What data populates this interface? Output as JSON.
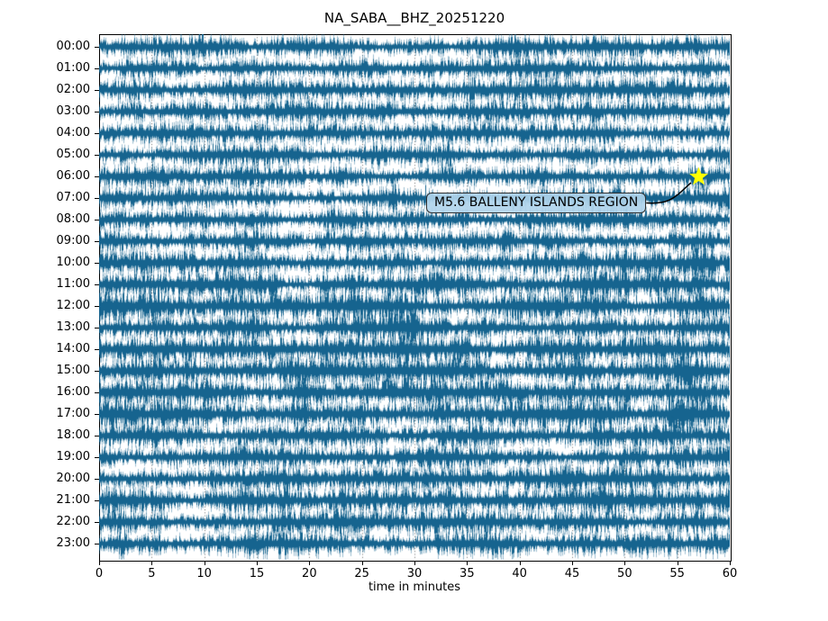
{
  "chart_data": {
    "type": "line",
    "subtype": "seismogram-dayplot",
    "title": "NA_SABA__BHZ_20251220",
    "xlabel": "time in minutes",
    "xlim": [
      0,
      60
    ],
    "x_ticks": [
      0,
      5,
      10,
      15,
      20,
      25,
      30,
      35,
      40,
      45,
      50,
      55,
      60
    ],
    "grid": {
      "vertical_dotted_lines_every_minutes": 5,
      "style": "dotted",
      "color": "#000000"
    },
    "trace_color": "#16648f",
    "rows": [
      {
        "label": "00:00",
        "amp": 8.5,
        "bursts": [
          [
            9.7,
            2.4,
            0.15
          ],
          [
            2,
            1.25,
            0.5
          ]
        ]
      },
      {
        "label": "01:00",
        "amp": 8.5,
        "bursts": [
          [
            57.3,
            1.5,
            0.8
          ],
          [
            40,
            1.2,
            0.6
          ]
        ]
      },
      {
        "label": "02:00",
        "amp": 9.5,
        "bursts": [
          [
            8,
            1.35,
            0.4
          ],
          [
            35.5,
            1.45,
            0.3
          ]
        ]
      },
      {
        "label": "03:00",
        "amp": 8.5,
        "bursts": [
          [
            16,
            1.7,
            0.2
          ],
          [
            27,
            1.35,
            0.3
          ]
        ]
      },
      {
        "label": "04:00",
        "amp": 8.5,
        "bursts": [
          [
            20,
            1.25,
            0.5
          ]
        ]
      },
      {
        "label": "05:00",
        "amp": 9.0,
        "bursts": [
          [
            33,
            1.25,
            0.4
          ]
        ]
      },
      {
        "label": "06:00",
        "amp": 9.0,
        "bursts": [
          [
            57,
            1.45,
            0.4
          ],
          [
            30,
            1.25,
            0.3
          ]
        ]
      },
      {
        "label": "07:00",
        "amp": 9.0,
        "bursts": [
          [
            28,
            1.7,
            0.2
          ],
          [
            44,
            1.35,
            0.3
          ]
        ]
      },
      {
        "label": "08:00",
        "amp": 9.0,
        "bursts": [
          [
            10,
            1.3,
            0.4
          ]
        ]
      },
      {
        "label": "09:00",
        "amp": 8.5,
        "bursts": [
          [
            13,
            1.6,
            0.15
          ],
          [
            38.5,
            1.55,
            0.2
          ]
        ]
      },
      {
        "label": "10:00",
        "amp": 10.5,
        "bursts": [
          [
            57.3,
            1.9,
            0.9
          ],
          [
            33,
            1.25,
            0.5
          ]
        ]
      },
      {
        "label": "11:00",
        "amp": 10.5,
        "bursts": [
          [
            23.5,
            1.5,
            0.4
          ],
          [
            27.5,
            1.6,
            0.3
          ],
          [
            57,
            1.35,
            0.4
          ]
        ]
      },
      {
        "label": "12:00",
        "amp": 11.0,
        "bursts": [
          [
            24,
            1.45,
            0.4
          ],
          [
            40,
            1.35,
            0.4
          ]
        ]
      },
      {
        "label": "13:00",
        "amp": 10.5,
        "bursts": [
          [
            29.5,
            1.5,
            0.4
          ],
          [
            12,
            1.25,
            0.4
          ]
        ]
      },
      {
        "label": "14:00",
        "amp": 12.0,
        "bursts": [
          [
            8.5,
            1.45,
            0.4
          ],
          [
            28.5,
            1.6,
            0.5
          ],
          [
            45.5,
            1.35,
            0.4
          ]
        ]
      },
      {
        "label": "15:00",
        "amp": 12.5,
        "bursts": [
          [
            45.5,
            1.6,
            0.6
          ],
          [
            56,
            1.7,
            0.8
          ]
        ]
      },
      {
        "label": "16:00",
        "amp": 12.0,
        "bursts": [
          [
            19.5,
            1.6,
            0.4
          ],
          [
            12,
            1.35,
            0.3
          ],
          [
            57,
            1.45,
            0.4
          ]
        ]
      },
      {
        "label": "17:00",
        "amp": 12.5,
        "bursts": [
          [
            19.5,
            1.55,
            0.5
          ],
          [
            45,
            1.45,
            0.4
          ],
          [
            55.5,
            1.6,
            0.6
          ]
        ]
      },
      {
        "label": "18:00",
        "amp": 10.5,
        "bursts": [
          [
            33,
            1.25,
            0.4
          ]
        ]
      },
      {
        "label": "19:00",
        "amp": 9.5,
        "bursts": [
          [
            28.5,
            1.45,
            0.2
          ]
        ]
      },
      {
        "label": "20:00",
        "amp": 10.5,
        "bursts": [
          [
            23.5,
            1.45,
            0.3
          ],
          [
            44,
            1.25,
            0.4
          ]
        ]
      },
      {
        "label": "21:00",
        "amp": 11.0,
        "bursts": [
          [
            17.5,
            1.5,
            0.4
          ],
          [
            29,
            1.5,
            0.4
          ],
          [
            33,
            1.45,
            0.3
          ]
        ]
      },
      {
        "label": "22:00",
        "amp": 9.5,
        "bursts": [
          [
            17.5,
            1.35,
            0.3
          ],
          [
            23,
            1.35,
            0.3
          ]
        ]
      },
      {
        "label": "23:00",
        "amp": 9.5,
        "bursts": [
          [
            14.2,
            2.1,
            0.12
          ],
          [
            2,
            1.35,
            0.3
          ],
          [
            37.5,
            1.3,
            0.2
          ]
        ]
      }
    ],
    "annotation": {
      "text": "M5.6 BALLENY ISLANDS REGION",
      "row": "06:00",
      "minute": 57,
      "marker": "star",
      "marker_color": "#ffff00",
      "box_fill": "#b0d4eb",
      "box_border": "#2f2f2f"
    }
  }
}
